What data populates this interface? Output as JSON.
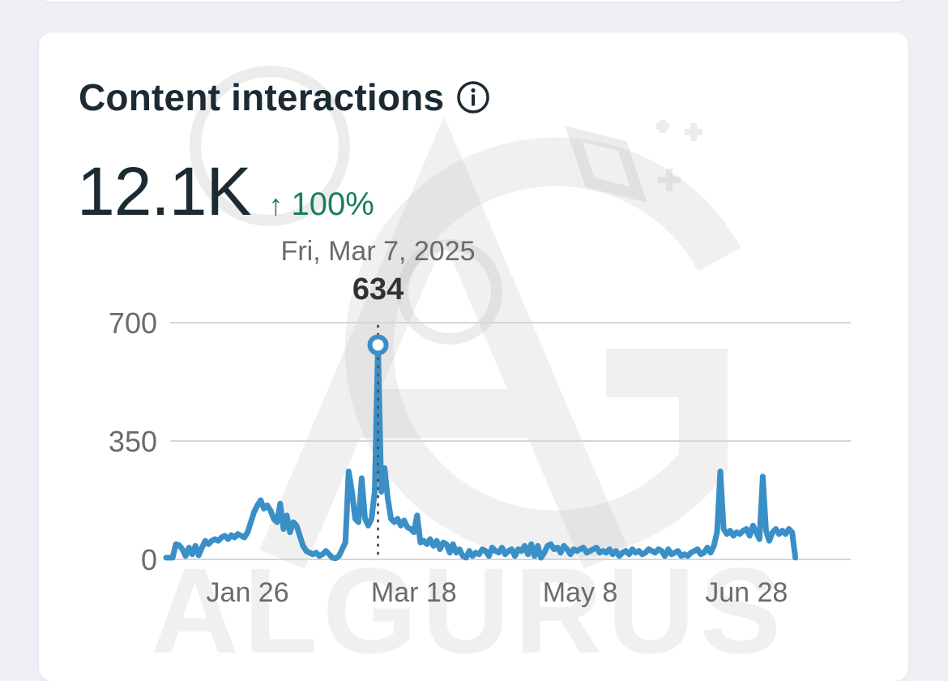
{
  "card": {
    "title": "Content interactions",
    "metric_value": "12.1K",
    "delta_label": "100%",
    "delta_direction": "up"
  },
  "watermark": {
    "text": "ALGURUS",
    "monogram": "AG"
  },
  "chart_data": {
    "type": "line",
    "title": "Content interactions",
    "ylim": [
      0,
      700
    ],
    "y_ticks": [
      0,
      350,
      700
    ],
    "x_tick_labels": [
      "Jan 26",
      "Mar 18",
      "May 8",
      "Jun 28"
    ],
    "x_tick_days": [
      26,
      77,
      128,
      179
    ],
    "x_range_days": [
      1,
      211
    ],
    "grid": true,
    "line_color": "#3a8fc7",
    "tooltip": {
      "date": "Fri, Mar 7, 2025",
      "day": 66,
      "value": 634
    },
    "series": [
      {
        "name": "Content interactions",
        "points": [
          [
            1,
            5
          ],
          [
            3,
            5
          ],
          [
            4,
            45
          ],
          [
            5,
            42
          ],
          [
            6,
            30
          ],
          [
            7,
            10
          ],
          [
            8,
            35
          ],
          [
            9,
            15
          ],
          [
            10,
            40
          ],
          [
            11,
            12
          ],
          [
            12,
            35
          ],
          [
            13,
            55
          ],
          [
            14,
            45
          ],
          [
            15,
            55
          ],
          [
            16,
            60
          ],
          [
            17,
            55
          ],
          [
            18,
            65
          ],
          [
            19,
            70
          ],
          [
            20,
            60
          ],
          [
            21,
            72
          ],
          [
            22,
            65
          ],
          [
            23,
            75
          ],
          [
            24,
            70
          ],
          [
            25,
            65
          ],
          [
            26,
            80
          ],
          [
            27,
            110
          ],
          [
            28,
            140
          ],
          [
            29,
            160
          ],
          [
            30,
            175
          ],
          [
            31,
            150
          ],
          [
            32,
            160
          ],
          [
            33,
            145
          ],
          [
            34,
            120
          ],
          [
            35,
            110
          ],
          [
            36,
            165
          ],
          [
            37,
            90
          ],
          [
            38,
            130
          ],
          [
            39,
            80
          ],
          [
            40,
            110
          ],
          [
            41,
            100
          ],
          [
            42,
            70
          ],
          [
            43,
            40
          ],
          [
            44,
            25
          ],
          [
            45,
            20
          ],
          [
            46,
            15
          ],
          [
            47,
            20
          ],
          [
            48,
            10
          ],
          [
            49,
            15
          ],
          [
            50,
            25
          ],
          [
            51,
            15
          ],
          [
            52,
            5
          ],
          [
            53,
            3
          ],
          [
            54,
            10
          ],
          [
            55,
            30
          ],
          [
            56,
            50
          ],
          [
            57,
            260
          ],
          [
            58,
            200
          ],
          [
            59,
            120
          ],
          [
            60,
            110
          ],
          [
            61,
            240
          ],
          [
            62,
            120
          ],
          [
            63,
            100
          ],
          [
            64,
            120
          ],
          [
            65,
            200
          ],
          [
            66,
            634
          ],
          [
            67,
            200
          ],
          [
            68,
            270
          ],
          [
            69,
            180
          ],
          [
            70,
            120
          ],
          [
            71,
            110
          ],
          [
            72,
            120
          ],
          [
            73,
            100
          ],
          [
            74,
            115
          ],
          [
            75,
            95
          ],
          [
            76,
            90
          ],
          [
            77,
            80
          ],
          [
            78,
            130
          ],
          [
            79,
            50
          ],
          [
            80,
            55
          ],
          [
            81,
            45
          ],
          [
            82,
            60
          ],
          [
            83,
            40
          ],
          [
            84,
            55
          ],
          [
            85,
            30
          ],
          [
            86,
            50
          ],
          [
            87,
            45
          ],
          [
            88,
            20
          ],
          [
            89,
            45
          ],
          [
            90,
            20
          ],
          [
            91,
            30
          ],
          [
            92,
            10
          ],
          [
            93,
            5
          ],
          [
            94,
            25
          ],
          [
            95,
            10
          ],
          [
            96,
            20
          ],
          [
            97,
            15
          ],
          [
            98,
            30
          ],
          [
            99,
            25
          ],
          [
            100,
            10
          ],
          [
            101,
            35
          ],
          [
            102,
            25
          ],
          [
            103,
            20
          ],
          [
            104,
            35
          ],
          [
            105,
            15
          ],
          [
            106,
            25
          ],
          [
            107,
            30
          ],
          [
            108,
            10
          ],
          [
            109,
            30
          ],
          [
            110,
            25
          ],
          [
            111,
            40
          ],
          [
            112,
            15
          ],
          [
            113,
            45
          ],
          [
            114,
            10
          ],
          [
            115,
            40
          ],
          [
            116,
            5
          ],
          [
            117,
            20
          ],
          [
            118,
            40
          ],
          [
            119,
            45
          ],
          [
            120,
            30
          ],
          [
            121,
            35
          ],
          [
            122,
            20
          ],
          [
            123,
            40
          ],
          [
            124,
            30
          ],
          [
            125,
            15
          ],
          [
            126,
            30
          ],
          [
            127,
            25
          ],
          [
            128,
            30
          ],
          [
            129,
            35
          ],
          [
            130,
            20
          ],
          [
            131,
            25
          ],
          [
            132,
            30
          ],
          [
            133,
            35
          ],
          [
            134,
            20
          ],
          [
            135,
            25
          ],
          [
            136,
            20
          ],
          [
            137,
            30
          ],
          [
            138,
            15
          ],
          [
            139,
            25
          ],
          [
            140,
            10
          ],
          [
            141,
            20
          ],
          [
            142,
            25
          ],
          [
            143,
            15
          ],
          [
            144,
            30
          ],
          [
            145,
            20
          ],
          [
            146,
            25
          ],
          [
            147,
            15
          ],
          [
            148,
            20
          ],
          [
            149,
            30
          ],
          [
            150,
            25
          ],
          [
            151,
            20
          ],
          [
            152,
            30
          ],
          [
            153,
            25
          ],
          [
            154,
            10
          ],
          [
            155,
            30
          ],
          [
            156,
            15
          ],
          [
            157,
            20
          ],
          [
            158,
            25
          ],
          [
            159,
            10
          ],
          [
            160,
            15
          ],
          [
            161,
            10
          ],
          [
            162,
            20
          ],
          [
            163,
            25
          ],
          [
            164,
            30
          ],
          [
            165,
            15
          ],
          [
            166,
            20
          ],
          [
            167,
            35
          ],
          [
            168,
            20
          ],
          [
            169,
            40
          ],
          [
            170,
            80
          ],
          [
            171,
            260
          ],
          [
            172,
            90
          ],
          [
            173,
            75
          ],
          [
            174,
            85
          ],
          [
            175,
            70
          ],
          [
            176,
            80
          ],
          [
            177,
            75
          ],
          [
            178,
            85
          ],
          [
            179,
            90
          ],
          [
            180,
            70
          ],
          [
            181,
            100
          ],
          [
            182,
            80
          ],
          [
            183,
            60
          ],
          [
            184,
            245
          ],
          [
            185,
            85
          ],
          [
            186,
            55
          ],
          [
            187,
            80
          ],
          [
            188,
            90
          ],
          [
            189,
            75
          ],
          [
            190,
            85
          ],
          [
            191,
            75
          ],
          [
            192,
            90
          ],
          [
            193,
            80
          ],
          [
            194,
            5
          ]
        ]
      }
    ]
  }
}
